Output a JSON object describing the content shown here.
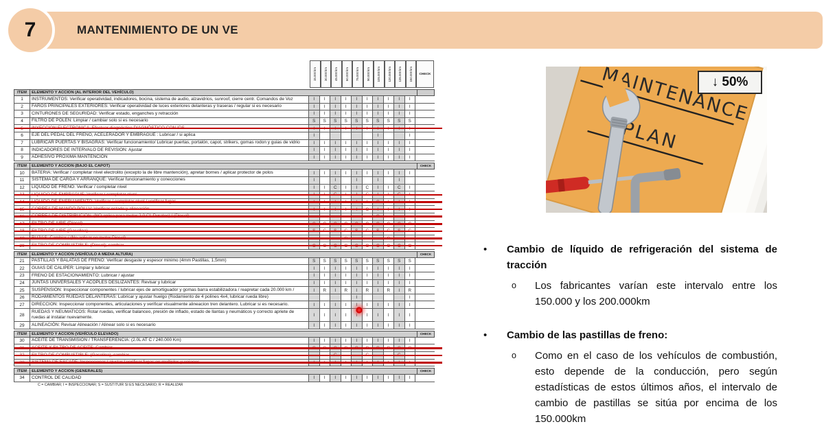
{
  "header": {
    "number": "7",
    "title": "MANTENIMIENTO DE UN VE"
  },
  "table": {
    "item_header": "ITEM",
    "km_columns": [
      "15.000 km",
      "30.000 km",
      "45.000 km",
      "60.000 km",
      "75.000 km",
      "90.000 km",
      "105.000 km",
      "120.000 km",
      "135.000 km",
      "150.000 km"
    ],
    "check_label": "CHECK",
    "legend": "C = CAMBIAR; I = INSPECCIONAR; S = SUSTITUIR SI ES NECESARIO; R = REALIZAR",
    "sections": [
      {
        "title": "ELEMENTO Y ACCION  (AL INTERIOR DEL VEHÍCULO)",
        "check": "",
        "rows": [
          {
            "item": "1",
            "desc": "INSTRUMENTOS: Verificar operatividad, indicadores, bocina, sistema de audio, alzavidrios, sunroof, cierre centr. Comandos de Voz",
            "cells": [
              "I",
              "I",
              "I",
              "I",
              "I",
              "I",
              "I",
              "I",
              "I",
              "I"
            ],
            "struck": false
          },
          {
            "item": "2",
            "desc": "FAROS PRINCIPALES EXTERIORES: Verificar operatividad de luces exteriores delanteras y traseras / regular si es necesario",
            "cells": [
              "I",
              "I",
              "I",
              "I",
              "I",
              "I",
              "I",
              "I",
              "I",
              "I"
            ],
            "struck": false
          },
          {
            "item": "3",
            "desc": "CINTURONES DE SEGURIDAD: Verificar estado, enganches y retracción",
            "cells": [
              "I",
              "I",
              "I",
              "I",
              "I",
              "I",
              "I",
              "I",
              "I",
              "I"
            ],
            "struck": false
          },
          {
            "item": "4",
            "desc": "FILTRO DE POLEN: Limpiar / cambiar solo si es necesario",
            "cells": [
              "S",
              "S",
              "S",
              "S",
              "S",
              "S",
              "S",
              "S",
              "S",
              "S"
            ],
            "struck": false
          },
          {
            "item": "5",
            "desc": "INYECCION ELECTRONICA: Efectuar diagnóstico DIAGNÓSTICO CON IDS",
            "cells": [
              "I",
              "I",
              "I",
              "I",
              "I",
              "I",
              "I",
              "I",
              "I",
              "I"
            ],
            "struck": true
          },
          {
            "item": "6",
            "desc": "EJE DEL PEDAL DEL FRENO, ACELERADOR Y EMBRAGUE : Lubricar / si aplica",
            "cells": [
              "I",
              "",
              "",
              "",
              "",
              "",
              "I",
              "",
              "",
              "I"
            ],
            "struck": false
          },
          {
            "item": "7",
            "desc": "LUBRICAR PUERTAS Y BISAGRAS: Verificar funcionamiento/ Lubricar puertas, portalón, capot, strikers, gomas rodon y guias de vidrio",
            "cells": [
              "I",
              "I",
              "I",
              "I",
              "I",
              "I",
              "I",
              "I",
              "I",
              "I"
            ],
            "struck": false
          },
          {
            "item": "8",
            "desc": "INDICADORES DE INTERVALO DE REVISION:  Ajustar",
            "cells": [
              "I",
              "I",
              "I",
              "I",
              "I",
              "I",
              "I",
              "I",
              "I",
              "I"
            ],
            "struck": false
          },
          {
            "item": "9",
            "desc": "ADHESIVO PRÓXIMA MANTENCIÓN",
            "cells": [
              "I",
              "I",
              "I",
              "I",
              "I",
              "I",
              "I",
              "I",
              "I",
              "I"
            ],
            "struck": false
          }
        ]
      },
      {
        "title": "ELEMENTO Y ACCION  (BAJO EL CAPOT)",
        "check": "CHECK",
        "rows": [
          {
            "item": "10",
            "desc": "BATERIA: Verificar / completar nivel electrolito (excepto la de libre mantención), apretar bornes / aplicar protector de polos",
            "cells": [
              "I",
              "I",
              "I",
              "I",
              "I",
              "I",
              "I",
              "I",
              "I",
              "I"
            ],
            "struck": false
          },
          {
            "item": "11",
            "desc": "SISTEMA DE CARGA Y ARRANQUE: Verificar funcionamiento y conecciones",
            "cells": [
              "I",
              "",
              "I",
              "",
              "I",
              "",
              "I",
              "",
              "I",
              ""
            ],
            "struck": false
          },
          {
            "item": "12",
            "desc": "LIQUIDO DE FRENO: Verificar / completar nivel",
            "cells": [
              "I",
              "I",
              "C",
              "I",
              "I",
              "C",
              "I",
              "I",
              "C",
              "I"
            ],
            "struck": false
          },
          {
            "item": "13",
            "desc": "LIQUIDO DE EMBRAGUE: Verificar / completar nivel",
            "cells": [
              "I",
              "I",
              "C",
              "I",
              "I",
              "C",
              "I",
              "I",
              "C",
              "I"
            ],
            "struck": true
          },
          {
            "item": "14",
            "desc": "LIQUIDO DE ENFRIAMIENTO: Verificar / completar nivel / verificar fugas",
            "cells": [
              "I",
              "I",
              "I",
              "I",
              "I",
              "I",
              "C",
              "I",
              "I",
              "I"
            ],
            "struck": true
          },
          {
            "item": "15",
            "desc": "CORREA DE MANDO POLI V: Verificar estado y alineación",
            "cells": [
              "I",
              "I",
              "I",
              "I",
              "I",
              "C",
              "I",
              "I",
              "I",
              "I"
            ],
            "struck": true
          },
          {
            "item": "16",
            "desc": "CORREA DE DISTRIBUCION: (NO aplica para motor 2.0 CL Duratec) / (Diesel)",
            "cells": [
              "",
              "",
              "",
              "",
              "",
              "",
              "C",
              "",
              "",
              ""
            ],
            "struck": true
          },
          {
            "item": "17",
            "desc": "FILTRO DE AIRE (Diesel)",
            "cells": [
              "C",
              "C",
              "C",
              "C",
              "C",
              "C",
              "C",
              "C",
              "C",
              "C"
            ],
            "struck": true
          },
          {
            "item": "18",
            "desc": "FILTRO DE AIRE (Gasolina)",
            "cells": [
              "S",
              "C",
              "S",
              "C",
              "S",
              "C",
              "S",
              "C",
              "S",
              "C"
            ],
            "struck": true
          },
          {
            "item": "19",
            "desc": "BUJIAS: Cambiar / (No aplicar en motor Diesel)",
            "cells": [
              "",
              "",
              "",
              "C",
              "",
              "",
              "",
              "C",
              "",
              ""
            ],
            "struck": true
          },
          {
            "item": "20",
            "desc": "FILTRO DE COMBUSTIBLE: (Diesel); cambiar",
            "cells": [
              "C",
              "C",
              "C",
              "C",
              "C",
              "C",
              "C",
              "C",
              "C",
              "C"
            ],
            "struck": true
          }
        ]
      },
      {
        "title": "ELEMENTO Y ACCION  (VEHÍCULO A MEDIA ALTURA)",
        "check": "CHECK",
        "rows": [
          {
            "item": "21",
            "desc": "PASTILLAS Y BALATAS DE FRENO: Verificar desgaste y espesor minimo (4mm Pastillas, 1,5mm)",
            "cells": [
              "S",
              "S",
              "S",
              "S",
              "S",
              "S",
              "S",
              "S",
              "S",
              "S"
            ],
            "struck": false
          },
          {
            "item": "22",
            "desc": "GUIAS DE CALIPER: Limpiar y lubricar",
            "cells": [
              "I",
              "I",
              "I",
              "I",
              "I",
              "I",
              "I",
              "I",
              "I",
              "I"
            ],
            "struck": false
          },
          {
            "item": "23",
            "desc": "FRENO DE ESTACIONAMIENTO: Lubricar / ajustar",
            "cells": [
              "I",
              "I",
              "I",
              "I",
              "I",
              "I",
              "I",
              "I",
              "I",
              "I"
            ],
            "struck": false
          },
          {
            "item": "24",
            "desc": "JUNTAS  UNIVERSALES Y ACOPLES DESLIZANTES: Revisar y lubricar",
            "cells": [
              "I",
              "I",
              "I",
              "I",
              "I",
              "I",
              "I",
              "I",
              "I",
              "I"
            ],
            "struck": false
          },
          {
            "item": "25",
            "desc": "SUSPENSION: Inspeccionar componentes / lubricar ejes de amortiguador y gomas barra estabilizadora / reapretar cada 20.000 km /",
            "cells": [
              "I",
              "R",
              "I",
              "R",
              "I",
              "R",
              "I",
              "R",
              "I",
              "R"
            ],
            "struck": false
          },
          {
            "item": "26",
            "desc": "RODAMIENTOS RUEDAS DELANTERAS: Lubricar y ajustar huelgo (Rodamiento de 4 polines 4x4, lubricar rueda libre)",
            "cells": [
              "",
              "",
              "",
              "",
              "I",
              "",
              "",
              "",
              "",
              "I"
            ],
            "struck": false
          },
          {
            "item": "27",
            "desc": "DIRECCION: Inspeccionar componentes, articulaciones y verificar visualmente alineacion tren delantero. Lubricar si es necesario.",
            "cells": [
              "I",
              "I",
              "I",
              "I",
              "I",
              "I",
              "I",
              "I",
              "I",
              "I"
            ],
            "struck": false
          },
          {
            "item": "28",
            "desc": "RUEDAS Y NEUMATICOS: Rotar ruedas, verificar balanceo, presión de inflado, estado de llantas y neumáticos y correcto apriete de ruedas al instalar nuevamente.",
            "cells": [
              "I",
              "I",
              "I",
              "I",
              "I",
              "I",
              "I",
              "I",
              "I",
              "I"
            ],
            "struck": false
          },
          {
            "item": "29",
            "desc": "ALINEACIÓN: Revisar Alineación / Alinear solo si es necesario",
            "cells": [
              "I",
              "I",
              "I",
              "I",
              "I",
              "I",
              "I",
              "I",
              "I",
              "I"
            ],
            "struck": false
          }
        ]
      },
      {
        "title": "ELEMENTO Y ACCION  (VEHÍCULO ELEVADO)",
        "check": "CHECK",
        "rows": [
          {
            "item": "30",
            "desc": "ACEITE DE TRANSMISION / TRANSFERENCIA: (2.0L AT C / 240.000 Km)",
            "cells": [
              "I",
              "I",
              "I",
              "I",
              "I",
              "I",
              "I",
              "I",
              "I",
              "I"
            ],
            "struck": false
          },
          {
            "item": "31",
            "desc": "ACEITE Y FILTRO DE ACEITE: Cambiar",
            "cells": [
              "C",
              "C",
              "C",
              "C",
              "C",
              "C",
              "C",
              "C",
              "C",
              "C"
            ],
            "struck": true
          },
          {
            "item": "32",
            "desc": "FILTRO DE COMBUSTIBLE: (Gasolina), cambiar",
            "cells": [
              "",
              "",
              "C",
              "",
              "",
              "C",
              "",
              "",
              "C",
              ""
            ],
            "struck": true
          },
          {
            "item": "33",
            "desc": "SISTEMA DE ESCAPE: Inspeccionar / ajustar / verificar fugas en multiples y uniones",
            "cells": [
              "I",
              "I",
              "I",
              "I",
              "I",
              "I",
              "I",
              "I",
              "I",
              "I"
            ],
            "struck": true
          }
        ]
      },
      {
        "title": "ELEMENTO Y ACCION  (GENERALES)",
        "check": "CHECK",
        "rows": [
          {
            "item": "34",
            "desc": "CONTROL DE CALIDAD",
            "cells": [
              "I",
              "I",
              "I",
              "I",
              "I",
              "I",
              "I",
              "I",
              "I",
              "I"
            ],
            "struck": false
          }
        ]
      }
    ]
  },
  "photo": {
    "label": "↓ 50%",
    "line1": "MAINTENANCE",
    "line2": "PLAN"
  },
  "bullets": [
    {
      "marker": "•",
      "sub_marker": "o",
      "title": "Cambio de líquido de refrigeración del sistema de tracción",
      "sub": "Los fabricantes varían este intervalo entre los 150.000 y los 200.000km"
    },
    {
      "marker": "•",
      "sub_marker": "o",
      "title": "Cambio de las pastillas de freno:",
      "sub": "Como en el caso de los vehículos de combustión, esto depende de la conducción, pero según estadísticas de estos últimos años, el intervalo de cambio de pastillas se sitúa por encima de los 150.000km"
    }
  ],
  "colors": {
    "accent_bar": "#f4cca7",
    "strike_red": "#c00000",
    "shaded_col": "#d8d8d8",
    "section_bg": "#cfcfcf"
  }
}
